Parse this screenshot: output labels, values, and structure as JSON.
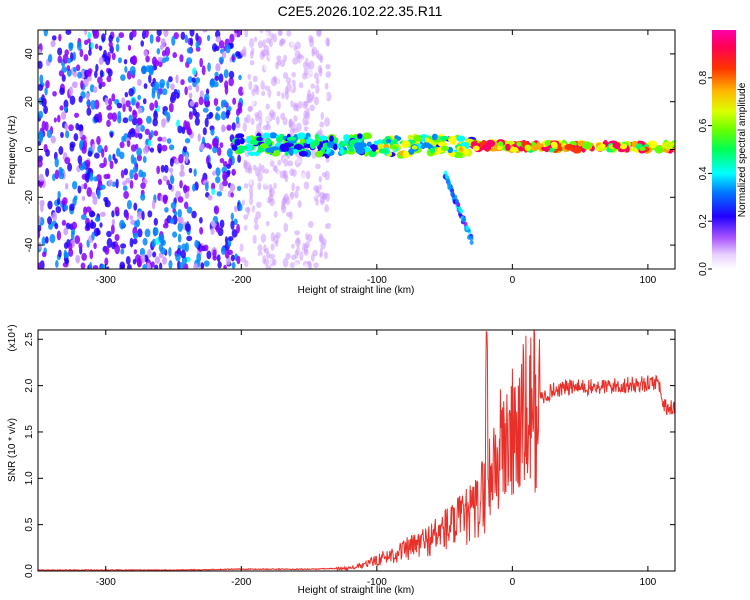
{
  "title": "C2E5.2026.102.22.35.R11",
  "chart_data": [
    {
      "type": "heatmap",
      "name": "spectrogram",
      "xlabel": "Height of straight line (km)",
      "ylabel": "Frequency (Hz)",
      "xlim": [
        -350,
        120
      ],
      "ylim": [
        -50,
        50
      ],
      "xticks": [
        -300,
        -200,
        -100,
        0,
        100
      ],
      "yticks": [
        -40,
        -20,
        0,
        20,
        40
      ],
      "colorbar": {
        "label": "Normalized spectral amplitude",
        "range": [
          0,
          1
        ],
        "ticks": [
          "0.0",
          "0.2",
          "0.4",
          "0.6",
          "0.8"
        ],
        "colors": [
          "#ffffff",
          "#cc99ff",
          "#8800ff",
          "#2200ff",
          "#0088ff",
          "#00ffff",
          "#00ff66",
          "#66ff00",
          "#ccff00",
          "#ffff00",
          "#ffaa00",
          "#ff3300",
          "#ff0066",
          "#ff00aa"
        ]
      },
      "bands": [
        {
          "name": "noise-left",
          "x_range": [
            -350,
            -200
          ],
          "freq_range": [
            -50,
            50
          ],
          "amplitude": 0.25
        },
        {
          "name": "noise-mid",
          "x_range": [
            -200,
            -135
          ],
          "freq_range": [
            -50,
            50
          ],
          "amplitude": 0.08
        },
        {
          "name": "carrier",
          "x_range": [
            -205,
            120
          ],
          "freq_start": 2,
          "freq_end": 1,
          "amplitude": 0.85
        },
        {
          "name": "branch",
          "x_range": [
            -50,
            -30
          ],
          "freq_start": -10,
          "freq_end": -38,
          "amplitude": 0.3
        }
      ]
    },
    {
      "type": "line",
      "name": "snr",
      "xlabel": "Height of straight line (km)",
      "ylabel": "SNR (10 * v/v)",
      "multiplier": "(x10⁴)",
      "xlim": [
        -350,
        120
      ],
      "ylim": [
        0,
        2.6
      ],
      "xticks": [
        -300,
        -200,
        -100,
        0,
        100
      ],
      "yticks": [
        "0.0",
        "0.5",
        "1.0",
        "1.5",
        "2.0",
        "2.5"
      ],
      "series": [
        {
          "name": "SNR",
          "color": "#e8302a",
          "x": [
            -350,
            -300,
            -250,
            -200,
            -150,
            -120,
            -110,
            -100,
            -80,
            -60,
            -50,
            -40,
            -30,
            -25,
            -20,
            -19,
            -18,
            -15,
            -10,
            -5,
            0,
            10,
            20,
            30,
            40,
            60,
            80,
            100,
            108,
            110,
            115,
            120
          ],
          "y": [
            0.01,
            0.01,
            0.01,
            0.02,
            0.02,
            0.03,
            0.06,
            0.12,
            0.22,
            0.35,
            0.45,
            0.52,
            0.62,
            0.7,
            0.9,
            2.58,
            1.05,
            1.1,
            1.25,
            1.4,
            1.45,
            1.65,
            1.85,
            1.95,
            1.98,
            1.98,
            2.0,
            2.02,
            2.05,
            1.85,
            1.75,
            1.77
          ]
        }
      ]
    }
  ]
}
